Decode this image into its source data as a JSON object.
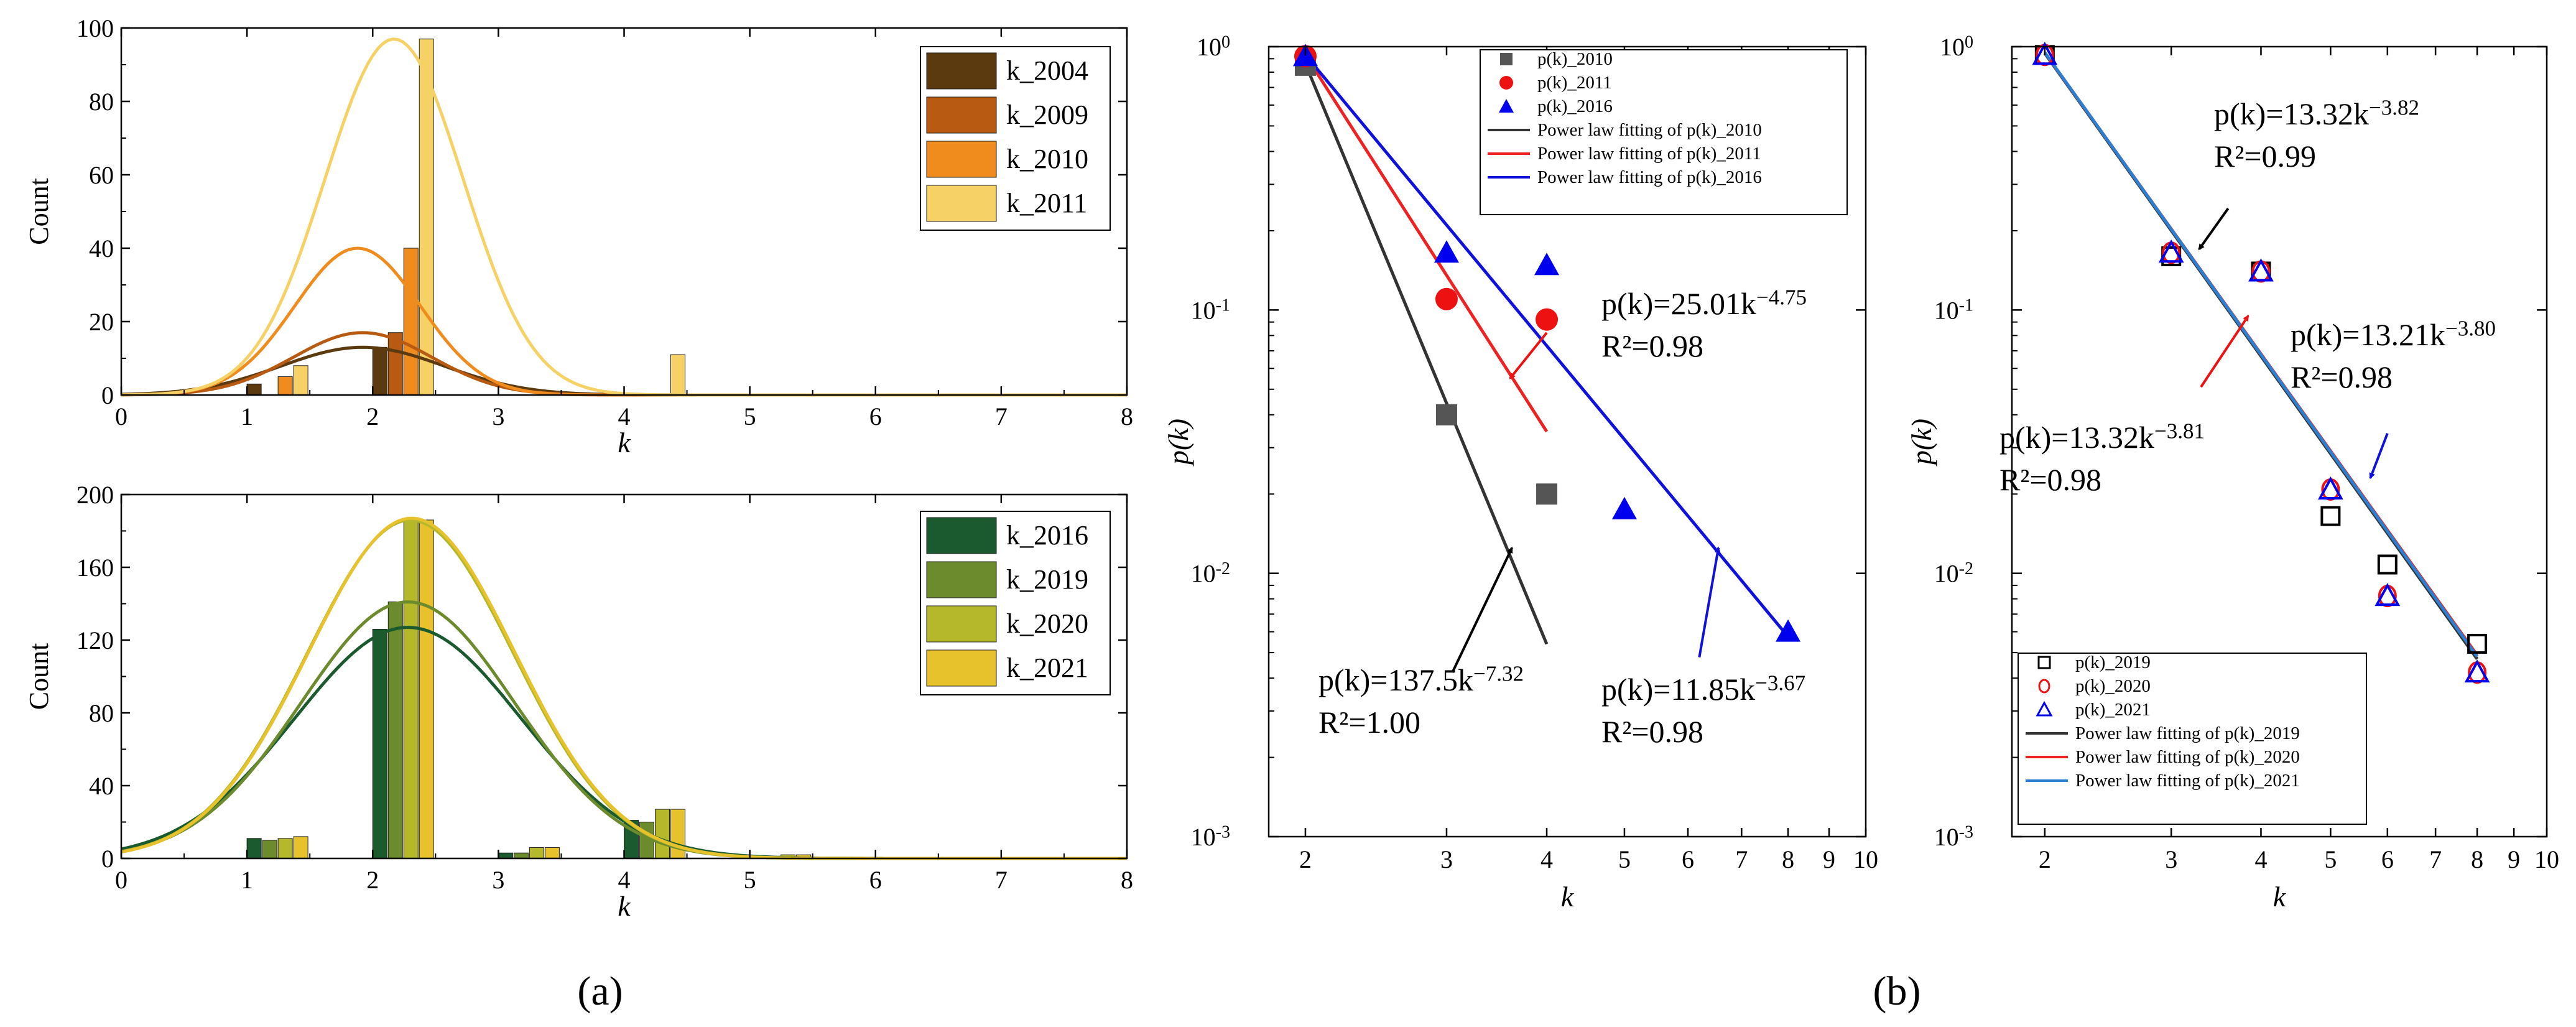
{
  "panel_labels": {
    "a": "(a)",
    "b": "(b)"
  },
  "chart_data": [
    {
      "id": "a_top",
      "type": "bar",
      "xlabel": "k",
      "ylabel": "Count",
      "xlim": [
        0,
        8
      ],
      "ylim": [
        0,
        100
      ],
      "xticks": [
        "0",
        "1",
        "2",
        "3",
        "4",
        "5",
        "6",
        "7",
        "8"
      ],
      "yticks": [
        "0",
        "20",
        "40",
        "60",
        "80",
        "100"
      ],
      "legend_position": "top-right",
      "series": [
        {
          "name": "k_2004",
          "color": "#5c3a10",
          "bars": [
            [
              1,
              3
            ],
            [
              2,
              13
            ],
            [
              3,
              0
            ],
            [
              4,
              0
            ]
          ],
          "fit": {
            "mu": 1.92,
            "sigma": 0.65,
            "peak": 13
          }
        },
        {
          "name": "k_2009",
          "color": "#b85a12",
          "bars": [
            [
              1,
              0
            ],
            [
              2,
              17
            ],
            [
              3,
              0
            ],
            [
              4,
              0
            ]
          ],
          "fit": {
            "mu": 1.92,
            "sigma": 0.55,
            "peak": 17
          }
        },
        {
          "name": "k_2010",
          "color": "#f08c1e",
          "bars": [
            [
              1,
              5
            ],
            [
              2,
              40
            ],
            [
              3,
              0
            ],
            [
              4,
              0
            ]
          ],
          "fit": {
            "mu": 1.88,
            "sigma": 0.5,
            "peak": 40
          }
        },
        {
          "name": "k_2011",
          "color": "#f6d266",
          "bars": [
            [
              1,
              8
            ],
            [
              2,
              97
            ],
            [
              3,
              1
            ],
            [
              4,
              11
            ]
          ],
          "fit": {
            "mu": 2.17,
            "sigma": 0.55,
            "peak": 97
          }
        }
      ]
    },
    {
      "id": "a_bottom",
      "type": "bar",
      "xlabel": "k",
      "ylabel": "Count",
      "xlim": [
        0,
        8
      ],
      "ylim": [
        0,
        200
      ],
      "xticks": [
        "0",
        "1",
        "2",
        "3",
        "4",
        "5",
        "6",
        "7",
        "8"
      ],
      "yticks": [
        "0",
        "40",
        "80",
        "120",
        "160",
        "200"
      ],
      "legend_position": "top-right",
      "series": [
        {
          "name": "k_2016",
          "color": "#1a5a2e",
          "bars": [
            [
              1,
              11
            ],
            [
              2,
              126
            ],
            [
              3,
              3
            ],
            [
              4,
              21
            ],
            [
              5,
              0
            ]
          ],
          "fit": {
            "mu": 2.28,
            "sigma": 0.9,
            "peak": 127
          }
        },
        {
          "name": "k_2019",
          "color": "#6b8b2c",
          "bars": [
            [
              1,
              10
            ],
            [
              2,
              141
            ],
            [
              3,
              3
            ],
            [
              4,
              20
            ],
            [
              5,
              0
            ]
          ],
          "fit": {
            "mu": 2.28,
            "sigma": 0.85,
            "peak": 141
          }
        },
        {
          "name": "k_2020",
          "color": "#b5b82a",
          "bars": [
            [
              1,
              11
            ],
            [
              2,
              186
            ],
            [
              3,
              6
            ],
            [
              4,
              27
            ],
            [
              5,
              2
            ]
          ],
          "fit": {
            "mu": 2.3,
            "sigma": 0.82,
            "peak": 186
          }
        },
        {
          "name": "k_2021",
          "color": "#e8c22c",
          "bars": [
            [
              1,
              12
            ],
            [
              2,
              186
            ],
            [
              3,
              6
            ],
            [
              4,
              27
            ],
            [
              5,
              2
            ]
          ],
          "fit": {
            "mu": 2.31,
            "sigma": 0.82,
            "peak": 187
          }
        }
      ]
    },
    {
      "id": "b_left",
      "type": "scatter",
      "xscale": "log",
      "yscale": "log",
      "xlabel": "k",
      "ylabel": "p(k)",
      "xlim": [
        1.8,
        10
      ],
      "ylim": [
        0.001,
        1
      ],
      "xticks": [
        "2",
        "3",
        "4",
        "5",
        "6",
        "7",
        "8",
        "9",
        "10"
      ],
      "yticks": [
        "10^0",
        "10^-1",
        "10^-2",
        "10^-3"
      ],
      "legend_position": "top-right",
      "series": [
        {
          "name": "p(k)_2010",
          "marker": "square",
          "color": "#555555",
          "x": [
            2,
            3,
            4
          ],
          "y": [
            0.85,
            0.04,
            0.02
          ]
        },
        {
          "name": "p(k)_2011",
          "marker": "circle",
          "color": "#ee1111",
          "x": [
            2,
            3,
            4
          ],
          "y": [
            0.92,
            0.11,
            0.092
          ]
        },
        {
          "name": "p(k)_2016",
          "marker": "triangle",
          "color": "#0000ee",
          "x": [
            2,
            3,
            4,
            5,
            8
          ],
          "y": [
            0.92,
            0.165,
            0.148,
            0.0175,
            0.006
          ]
        }
      ],
      "fits": [
        {
          "name": "Power law fitting of p(k)_2010",
          "color": "#333333",
          "a": 137.5,
          "b": -7.32,
          "x_range": [
            2,
            4
          ]
        },
        {
          "name": "Power law fitting of p(k)_2011",
          "color": "#ee2222",
          "a": 25.01,
          "b": -4.75,
          "x_range": [
            2,
            4
          ]
        },
        {
          "name": "Power law fitting of p(k)_2016",
          "color": "#1111dd",
          "a": 11.85,
          "b": -3.67,
          "x_range": [
            2,
            8
          ]
        }
      ],
      "annotations": [
        {
          "text": "p(k)=25.01k",
          "exp": "−4.75",
          "r2": "R²=0.98",
          "color": "#ee1111"
        },
        {
          "text": "p(k)=137.5k",
          "exp": "−7.32",
          "r2": "R²=1.00",
          "color": "#000000"
        },
        {
          "text": "p(k)=11.85k",
          "exp": "−3.67",
          "r2": "R²=0.98",
          "color": "#1111dd"
        }
      ]
    },
    {
      "id": "b_right",
      "type": "scatter",
      "xscale": "log",
      "yscale": "log",
      "xlabel": "k",
      "ylabel": "p(k)",
      "xlim": [
        1.8,
        10
      ],
      "ylim": [
        0.001,
        1
      ],
      "xticks": [
        "2",
        "3",
        "4",
        "5",
        "6",
        "7",
        "8",
        "9",
        "10"
      ],
      "yticks": [
        "10^0",
        "10^-1",
        "10^-2",
        "10^-3"
      ],
      "legend_position": "bottom-left",
      "series": [
        {
          "name": "p(k)_2019",
          "marker": "open-square",
          "color": "#000000",
          "x": [
            2,
            3,
            4,
            5,
            6,
            8
          ],
          "y": [
            0.93,
            0.16,
            0.14,
            0.0165,
            0.0108,
            0.0054
          ]
        },
        {
          "name": "p(k)_2020",
          "marker": "open-circle",
          "color": "#ee1111",
          "x": [
            2,
            3,
            4,
            5,
            6,
            8
          ],
          "y": [
            0.93,
            0.165,
            0.14,
            0.0208,
            0.0082,
            0.0042
          ]
        },
        {
          "name": "p(k)_2021",
          "marker": "open-triangle",
          "color": "#0000ee",
          "x": [
            2,
            3,
            4,
            5,
            6,
            8
          ],
          "y": [
            0.93,
            0.165,
            0.14,
            0.0208,
            0.0082,
            0.0042
          ]
        }
      ],
      "fits": [
        {
          "name": "Power law fitting of p(k)_2019",
          "color": "#333333",
          "a": 13.32,
          "b": -3.82,
          "x_range": [
            2,
            8
          ]
        },
        {
          "name": "Power law fitting of p(k)_2020",
          "color": "#ee2222",
          "a": 13.21,
          "b": -3.8,
          "x_range": [
            2,
            8
          ]
        },
        {
          "name": "Power law fitting of p(k)_2021",
          "color": "#2b7fd0",
          "a": 13.32,
          "b": -3.81,
          "x_range": [
            2,
            8
          ]
        }
      ],
      "annotations": [
        {
          "text": "p(k)=13.32k",
          "exp": "−3.82",
          "r2": "R²=0.99",
          "color": "#000000"
        },
        {
          "text": "p(k)=13.21k",
          "exp": "−3.80",
          "r2": "R²=0.98",
          "color": "#1111dd"
        },
        {
          "text": "p(k)=13.32k",
          "exp": "−3.81",
          "r2": "R²=0.98",
          "color": "#ee1111"
        }
      ]
    }
  ]
}
